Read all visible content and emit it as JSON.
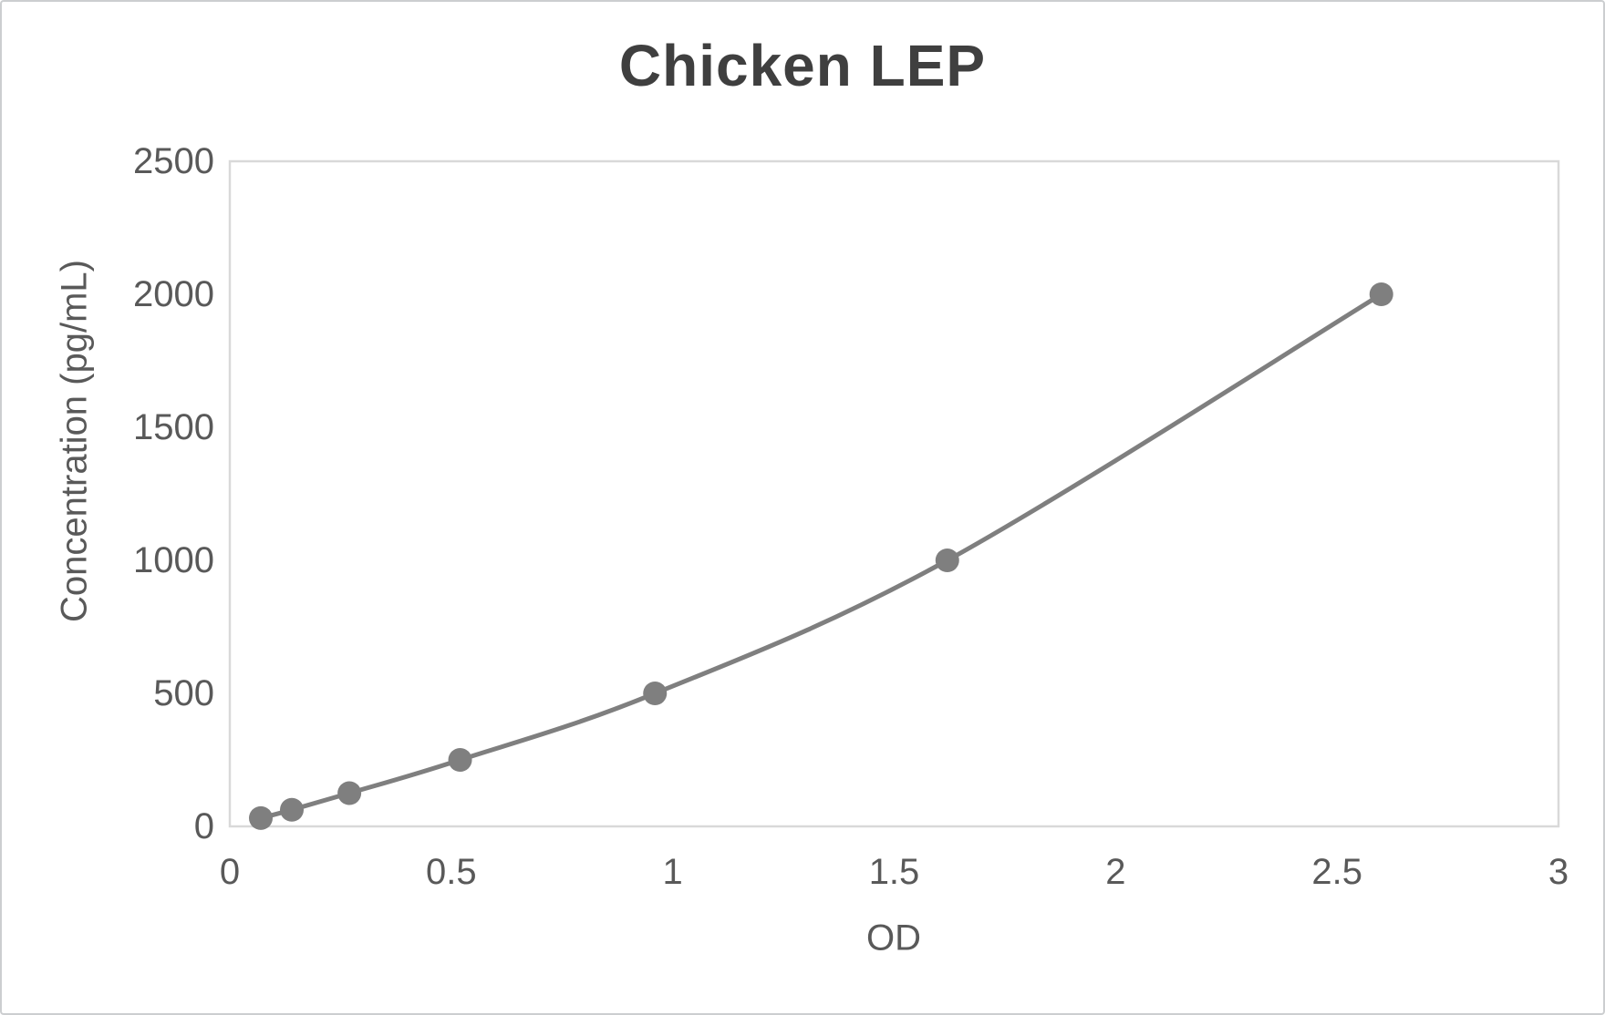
{
  "chart": {
    "title": "Chicken LEP",
    "x_axis_title": "OD",
    "y_axis_title": "Concentration (pg/mL)"
  },
  "chart_data": {
    "type": "line",
    "subtype": "scatter-with-smooth-line-and-markers",
    "title": "Chicken LEP",
    "xlabel": "OD",
    "ylabel": "Concentration (pg/mL)",
    "x": [
      0.07,
      0.14,
      0.27,
      0.52,
      0.96,
      1.62,
      2.6
    ],
    "y": [
      31.25,
      62.5,
      125,
      250,
      500,
      1000,
      2000
    ],
    "xlim": [
      0,
      3
    ],
    "ylim": [
      0,
      2500
    ],
    "xticks": {
      "values": [
        0,
        0.5,
        1,
        1.5,
        2,
        2.5,
        3
      ],
      "labels": [
        "0",
        "0.5",
        "1",
        "1.5",
        "2",
        "2.5",
        "3"
      ]
    },
    "yticks": {
      "values": [
        0,
        500,
        1000,
        1500,
        2000,
        2500
      ],
      "labels": [
        "0",
        "500",
        "1000",
        "1500",
        "2000",
        "2500"
      ]
    },
    "grid": false,
    "legend": "none",
    "marker": "circle",
    "colors": {
      "series": "#7f7f7f",
      "title_text": "#3f3f3f",
      "axis_text": "#595959",
      "plot_border": "#d9d9d9",
      "background": "#ffffff"
    }
  }
}
